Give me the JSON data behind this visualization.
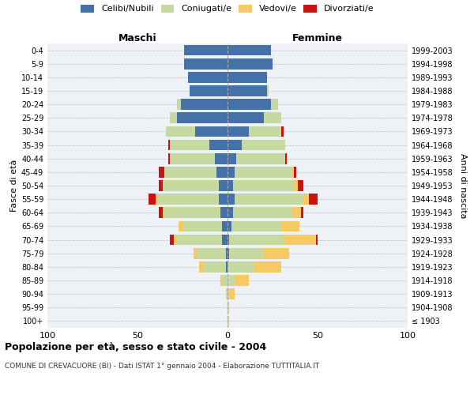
{
  "age_groups": [
    "100+",
    "95-99",
    "90-94",
    "85-89",
    "80-84",
    "75-79",
    "70-74",
    "65-69",
    "60-64",
    "55-59",
    "50-54",
    "45-49",
    "40-44",
    "35-39",
    "30-34",
    "25-29",
    "20-24",
    "15-19",
    "10-14",
    "5-9",
    "0-4"
  ],
  "birth_years": [
    "≤ 1903",
    "1904-1908",
    "1909-1913",
    "1914-1918",
    "1919-1923",
    "1924-1928",
    "1929-1933",
    "1934-1938",
    "1939-1943",
    "1944-1948",
    "1949-1953",
    "1954-1958",
    "1959-1963",
    "1964-1968",
    "1969-1973",
    "1974-1978",
    "1979-1983",
    "1984-1988",
    "1989-1993",
    "1994-1998",
    "1999-2003"
  ],
  "colors": {
    "celibi": "#4472A8",
    "coniugati": "#c5d9a0",
    "vedovi": "#f5c964",
    "divorziati": "#cc1111"
  },
  "maschi": {
    "celibi": [
      0,
      0,
      0,
      0,
      1,
      1,
      3,
      3,
      4,
      5,
      5,
      6,
      7,
      10,
      18,
      28,
      26,
      21,
      22,
      24,
      24
    ],
    "coniugati": [
      0,
      0,
      1,
      3,
      12,
      16,
      25,
      22,
      31,
      34,
      31,
      29,
      25,
      22,
      16,
      4,
      2,
      0,
      0,
      0,
      0
    ],
    "vedovi": [
      0,
      0,
      0,
      1,
      3,
      2,
      2,
      2,
      1,
      1,
      0,
      0,
      0,
      0,
      0,
      0,
      0,
      0,
      0,
      0,
      0
    ],
    "divorziati": [
      0,
      0,
      0,
      0,
      0,
      0,
      2,
      0,
      2,
      4,
      2,
      3,
      1,
      1,
      0,
      0,
      0,
      0,
      0,
      0,
      0
    ]
  },
  "femmine": {
    "celibi": [
      0,
      0,
      0,
      0,
      0,
      1,
      1,
      2,
      3,
      4,
      3,
      4,
      5,
      8,
      12,
      20,
      24,
      22,
      22,
      25,
      24
    ],
    "coniugati": [
      0,
      0,
      1,
      4,
      15,
      19,
      30,
      28,
      33,
      38,
      34,
      32,
      27,
      24,
      18,
      10,
      4,
      1,
      0,
      0,
      0
    ],
    "vedovi": [
      1,
      1,
      3,
      8,
      15,
      14,
      18,
      10,
      5,
      3,
      2,
      1,
      0,
      0,
      0,
      0,
      0,
      0,
      0,
      0,
      0
    ],
    "divorziati": [
      0,
      0,
      0,
      0,
      0,
      0,
      1,
      0,
      1,
      5,
      3,
      1,
      1,
      0,
      1,
      0,
      0,
      0,
      0,
      0,
      0
    ]
  },
  "title": "Popolazione per età, sesso e stato civile - 2004",
  "subtitle": "COMUNE DI CREVACUORE (BI) - Dati ISTAT 1° gennaio 2004 - Elaborazione TUTTITALIA.IT",
  "xlabel_left": "Maschi",
  "xlabel_right": "Femmine",
  "ylabel_left": "Fasce di età",
  "ylabel_right": "Anni di nascita",
  "xlim": 100,
  "legend_labels": [
    "Celibi/Nubili",
    "Coniugati/e",
    "Vedovi/e",
    "Divorziati/e"
  ],
  "background_color": "#ffffff",
  "plot_bg": "#eef2f7"
}
